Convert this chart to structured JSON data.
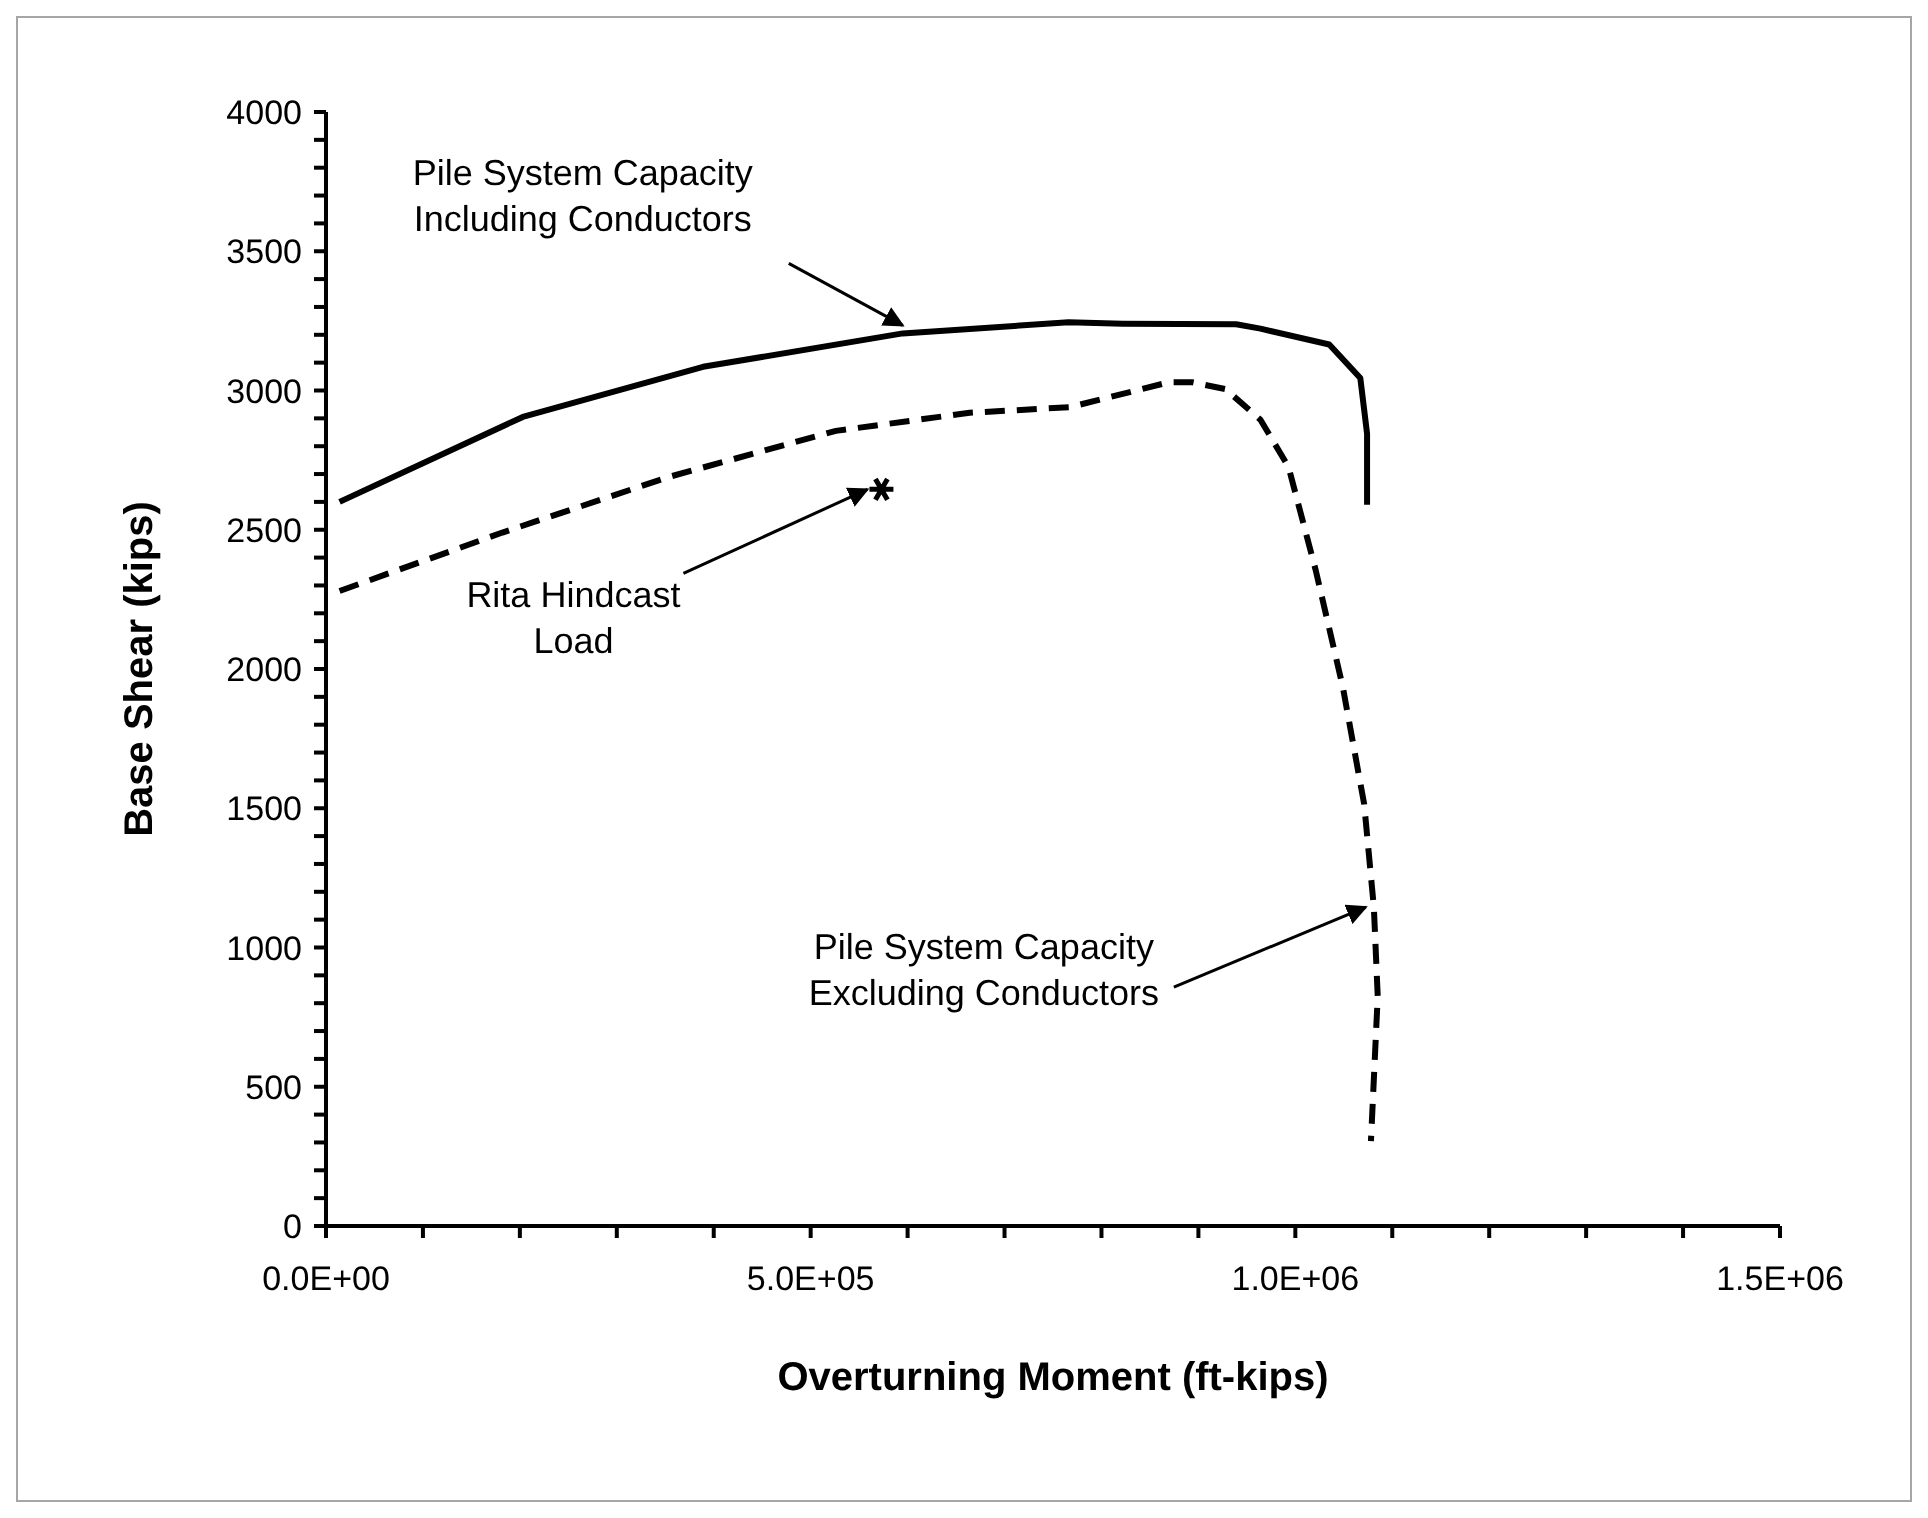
{
  "chart_data": {
    "type": "line",
    "xlabel": "Overturning Moment (ft-kips)",
    "ylabel": "Base Shear (kips)",
    "xlim": [
      0,
      1500000
    ],
    "xticks": [
      {
        "value": 0,
        "label": "0.0E+00"
      },
      {
        "value": 100000,
        "label": null
      },
      {
        "value": 200000,
        "label": null
      },
      {
        "value": 300000,
        "label": null
      },
      {
        "value": 400000,
        "label": null
      },
      {
        "value": 500000,
        "label": "5.0E+05"
      },
      {
        "value": 600000,
        "label": null
      },
      {
        "value": 700000,
        "label": null
      },
      {
        "value": 800000,
        "label": null
      },
      {
        "value": 900000,
        "label": null
      },
      {
        "value": 1000000,
        "label": "1.0E+06"
      },
      {
        "value": 1100000,
        "label": null
      },
      {
        "value": 1200000,
        "label": null
      },
      {
        "value": 1300000,
        "label": null
      },
      {
        "value": 1400000,
        "label": null
      },
      {
        "value": 1500000,
        "label": "1.5E+06"
      }
    ],
    "ylim": [
      0,
      4000
    ],
    "yticks": [
      0,
      {
        "value": 100,
        "label": null
      },
      {
        "value": 200,
        "label": null
      },
      {
        "value": 300,
        "label": null
      },
      {
        "value": 400,
        "label": null
      },
      500,
      {
        "value": 600,
        "label": null
      },
      {
        "value": 700,
        "label": null
      },
      {
        "value": 800,
        "label": null
      },
      {
        "value": 900,
        "label": null
      },
      1000,
      {
        "value": 1100,
        "label": null
      },
      {
        "value": 1200,
        "label": null
      },
      {
        "value": 1300,
        "label": null
      },
      {
        "value": 1400,
        "label": null
      },
      1500,
      {
        "value": 1600,
        "label": null
      },
      {
        "value": 1700,
        "label": null
      },
      {
        "value": 1800,
        "label": null
      },
      {
        "value": 1900,
        "label": null
      },
      2000,
      {
        "value": 2100,
        "label": null
      },
      {
        "value": 2200,
        "label": null
      },
      {
        "value": 2300,
        "label": null
      },
      {
        "value": 2400,
        "label": null
      },
      2500,
      {
        "value": 2600,
        "label": null
      },
      {
        "value": 2700,
        "label": null
      },
      {
        "value": 2800,
        "label": null
      },
      {
        "value": 2900,
        "label": null
      },
      3000,
      {
        "value": 3100,
        "label": null
      },
      {
        "value": 3200,
        "label": null
      },
      {
        "value": 3300,
        "label": null
      },
      {
        "value": 3400,
        "label": null
      },
      3500,
      {
        "value": 3600,
        "label": null
      },
      {
        "value": 3700,
        "label": null
      },
      {
        "value": 3800,
        "label": null
      },
      {
        "value": 3900,
        "label": null
      },
      4000
    ],
    "series": [
      {
        "color": "#000000",
        "line_style": "solid",
        "marker": "none",
        "x": [
          14000,
          203000,
          389000,
          595000,
          766000,
          822000,
          939000,
          964000,
          1035000,
          1067000,
          1074000,
          1074000
        ],
        "values": [
          2600,
          2905,
          3085,
          3205,
          3245,
          3240,
          3238,
          3222,
          3165,
          3045,
          2845,
          2590
        ]
      },
      {
        "color": "#000000",
        "line_style": "dashed",
        "marker": "none",
        "x": [
          14000,
          182000,
          354000,
          526000,
          664000,
          767000,
          870000,
          893000,
          928000,
          964000,
          993000,
          1021000,
          1049000,
          1071000,
          1081000,
          1085000,
          1078000
        ],
        "values": [
          2280,
          2490,
          2690,
          2855,
          2920,
          2940,
          3030,
          3030,
          3005,
          2895,
          2725,
          2355,
          1935,
          1515,
          1145,
          825,
          305
        ]
      },
      {
        "type": "scatter",
        "color": "#000000",
        "marker": "cross",
        "x": [
          573000
        ],
        "values": [
          2645
        ]
      }
    ],
    "annotations": [
      {
        "text": "Pile System Capacity\nIncluding Conductors",
        "x": 595000,
        "y": 3205
      },
      {
        "text": "Rita Hindcast\nLoad",
        "x": 573000,
        "y": 2645
      },
      {
        "text": "Pile System Capacity\nExcluding Conductors",
        "x": 1081000,
        "y": 1145
      }
    ]
  }
}
